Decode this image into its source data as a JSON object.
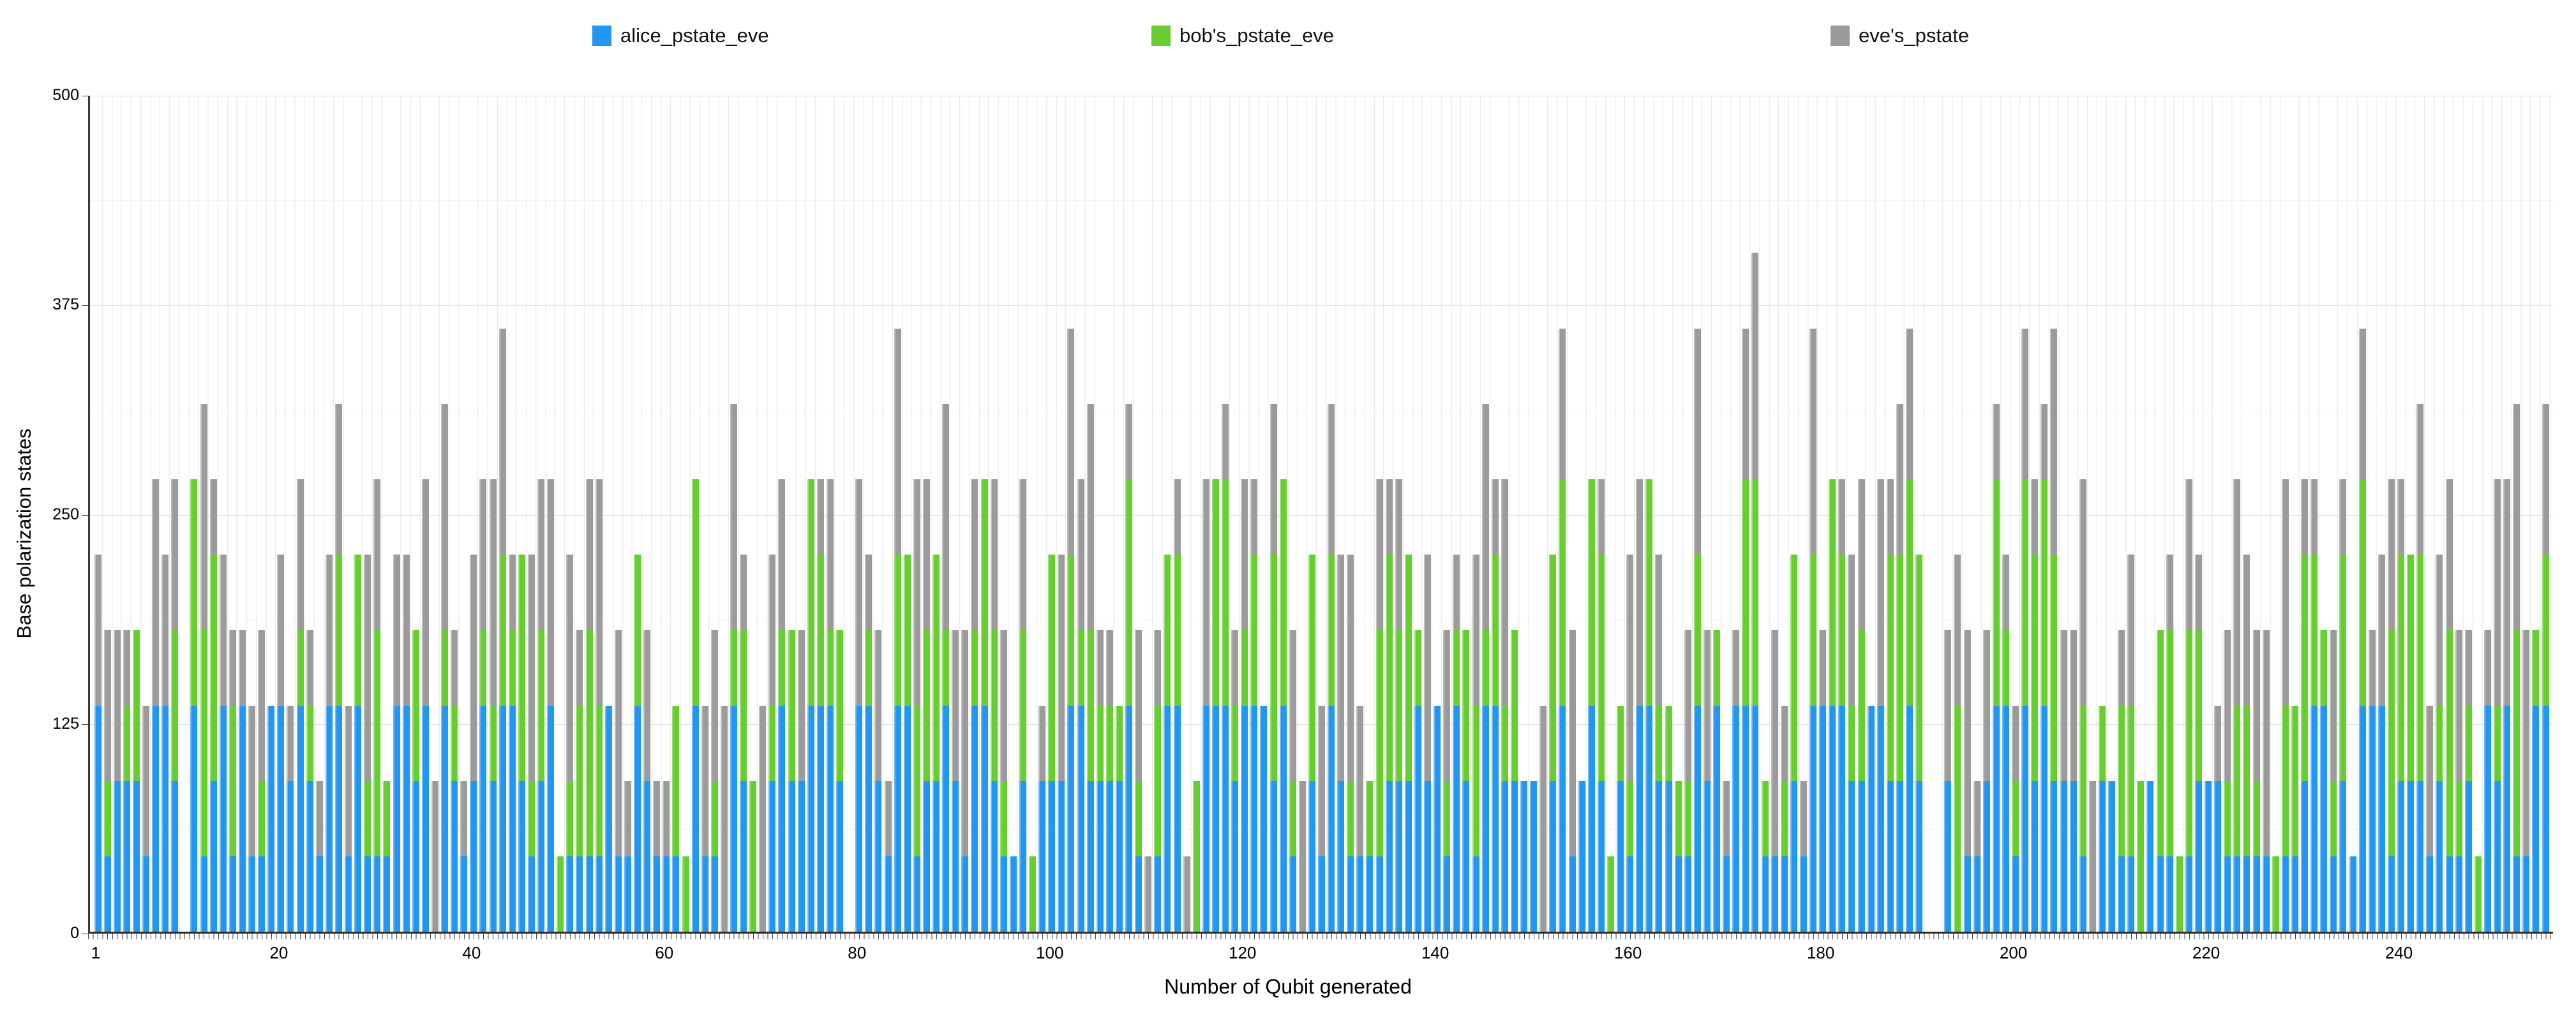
{
  "legend": [
    {
      "label": "alice_pstate_eve",
      "color": "#2196F3"
    },
    {
      "label": "bob's_pstate_eve",
      "color": "#66CE2E"
    },
    {
      "label": "eve's_pstate",
      "color": "#9B9B9B"
    }
  ],
  "axes": {
    "x_title": "Number of Qubit generated",
    "y_title": "Base polarization states"
  },
  "chart_data": {
    "type": "bar",
    "stacked": true,
    "title": "",
    "xlabel": "Number of Qubit generated",
    "ylabel": "Base polarization states",
    "x_start": 1,
    "x_count": 255,
    "xticks": [
      1,
      20,
      40,
      60,
      80,
      100,
      120,
      140,
      160,
      180,
      200,
      220,
      240
    ],
    "yticks": [
      0,
      125,
      250,
      375,
      500
    ],
    "y_minor_step": 62.5,
    "ylim": [
      0,
      500
    ],
    "grid": true,
    "legend_position": "top",
    "series": [
      {
        "name": "alice_pstate_eve",
        "color": "#2196F3",
        "values": [
          135,
          45,
          90,
          90,
          90,
          45,
          135,
          135,
          90,
          0,
          135,
          45,
          90,
          135,
          45,
          135,
          45,
          45,
          135,
          135,
          90,
          135,
          90,
          45,
          135,
          135,
          45,
          135,
          45,
          45,
          45,
          135,
          135,
          90,
          135,
          0,
          135,
          90,
          45,
          90,
          135,
          90,
          135,
          135,
          90,
          45,
          90,
          135,
          0,
          45,
          45,
          45,
          45,
          135,
          45,
          45,
          135,
          90,
          45,
          45,
          45,
          0,
          135,
          45,
          45,
          0,
          135,
          90,
          0,
          0,
          90,
          135,
          90,
          90,
          135,
          135,
          135,
          90,
          0,
          135,
          135,
          90,
          45,
          135,
          135,
          45,
          90,
          90,
          135,
          90,
          45,
          135,
          135,
          90,
          45,
          45,
          90,
          0,
          90,
          90,
          90,
          135,
          135,
          90,
          90,
          90,
          90,
          135,
          45,
          0,
          45,
          135,
          135,
          0,
          0,
          135,
          135,
          135,
          90,
          135,
          135,
          135,
          90,
          135,
          45,
          0,
          90,
          45,
          135,
          90,
          45,
          45,
          45,
          45,
          90,
          90,
          90,
          135,
          90,
          135,
          45,
          135,
          90,
          45,
          135,
          135,
          90,
          90,
          90,
          90,
          0,
          90,
          135,
          45,
          90,
          135,
          90,
          0,
          90,
          45,
          135,
          135,
          90,
          90,
          45,
          45,
          135,
          90,
          135,
          45,
          135,
          135,
          135,
          45,
          45,
          45,
          90,
          45,
          135,
          135,
          135,
          135,
          90,
          90,
          135,
          135,
          90,
          90,
          135,
          90,
          0,
          0,
          90,
          0,
          45,
          45,
          90,
          135,
          135,
          45,
          135,
          90,
          135,
          90,
          90,
          90,
          45,
          0,
          90,
          90,
          45,
          45,
          0,
          90,
          45,
          45,
          0,
          45,
          90,
          90,
          90,
          45,
          45,
          45,
          45,
          45,
          0,
          45,
          45,
          90,
          135,
          135,
          45,
          90,
          45,
          135,
          135,
          135,
          45,
          90,
          90,
          90,
          45,
          90,
          45,
          45,
          90,
          0,
          135,
          90,
          135,
          45,
          45,
          135,
          135
        ]
      },
      {
        "name": "bob's_pstate_eve",
        "color": "#66CE2E",
        "values": [
          0,
          45,
          0,
          45,
          90,
          0,
          0,
          0,
          90,
          0,
          135,
          135,
          135,
          0,
          90,
          0,
          0,
          45,
          0,
          0,
          0,
          45,
          45,
          0,
          0,
          90,
          0,
          90,
          45,
          135,
          45,
          0,
          0,
          90,
          0,
          0,
          45,
          45,
          0,
          0,
          45,
          45,
          90,
          45,
          135,
          45,
          90,
          0,
          45,
          45,
          90,
          135,
          90,
          0,
          0,
          0,
          90,
          0,
          0,
          0,
          90,
          45,
          135,
          0,
          45,
          0,
          45,
          90,
          90,
          0,
          45,
          45,
          90,
          0,
          135,
          90,
          45,
          90,
          0,
          0,
          45,
          0,
          0,
          90,
          90,
          90,
          90,
          135,
          45,
          0,
          0,
          45,
          135,
          90,
          45,
          0,
          90,
          45,
          0,
          135,
          0,
          90,
          45,
          90,
          45,
          45,
          45,
          135,
          45,
          0,
          90,
          90,
          90,
          0,
          90,
          0,
          135,
          135,
          45,
          45,
          90,
          0,
          135,
          135,
          45,
          0,
          135,
          0,
          90,
          0,
          45,
          0,
          45,
          135,
          135,
          90,
          135,
          45,
          0,
          0,
          45,
          45,
          90,
          90,
          45,
          90,
          45,
          90,
          0,
          0,
          0,
          135,
          135,
          0,
          0,
          135,
          135,
          45,
          45,
          45,
          0,
          135,
          45,
          45,
          45,
          45,
          90,
          0,
          45,
          0,
          0,
          135,
          135,
          45,
          0,
          45,
          135,
          0,
          90,
          0,
          135,
          90,
          45,
          90,
          0,
          0,
          135,
          135,
          135,
          135,
          0,
          0,
          0,
          135,
          0,
          0,
          0,
          135,
          45,
          45,
          135,
          135,
          135,
          135,
          0,
          0,
          90,
          0,
          45,
          0,
          90,
          90,
          90,
          0,
          135,
          135,
          45,
          135,
          90,
          0,
          0,
          45,
          90,
          90,
          45,
          0,
          45,
          90,
          90,
          135,
          90,
          45,
          45,
          135,
          0,
          135,
          0,
          0,
          135,
          135,
          135,
          135,
          0,
          45,
          135,
          45,
          45,
          45,
          0,
          45,
          0,
          135,
          0,
          45,
          90
        ]
      },
      {
        "name": "eve's_pstate",
        "color": "#9B9B9B",
        "values": [
          90,
          90,
          90,
          45,
          0,
          90,
          135,
          90,
          90,
          0,
          0,
          135,
          45,
          90,
          45,
          45,
          90,
          90,
          0,
          90,
          45,
          90,
          45,
          45,
          90,
          90,
          90,
          0,
          135,
          90,
          0,
          90,
          90,
          0,
          135,
          90,
          135,
          45,
          45,
          135,
          90,
          135,
          135,
          45,
          0,
          135,
          90,
          135,
          0,
          135,
          45,
          90,
          135,
          0,
          135,
          45,
          0,
          90,
          45,
          45,
          0,
          0,
          0,
          90,
          90,
          135,
          135,
          45,
          0,
          135,
          90,
          90,
          0,
          90,
          0,
          45,
          90,
          0,
          0,
          135,
          45,
          90,
          45,
          135,
          0,
          135,
          90,
          0,
          135,
          90,
          135,
          90,
          0,
          90,
          90,
          0,
          90,
          0,
          45,
          0,
          135,
          135,
          90,
          135,
          45,
          45,
          0,
          45,
          90,
          45,
          45,
          0,
          45,
          45,
          0,
          135,
          0,
          45,
          45,
          90,
          45,
          0,
          90,
          0,
          90,
          90,
          0,
          90,
          90,
          135,
          135,
          90,
          0,
          90,
          45,
          90,
          0,
          0,
          135,
          0,
          90,
          45,
          0,
          90,
          135,
          45,
          135,
          0,
          0,
          0,
          135,
          0,
          90,
          135,
          0,
          0,
          45,
          0,
          0,
          135,
          135,
          0,
          90,
          0,
          0,
          90,
          135,
          90,
          0,
          45,
          45,
          90,
          135,
          0,
          135,
          45,
          0,
          45,
          135,
          45,
          0,
          45,
          90,
          90,
          0,
          135,
          45,
          90,
          90,
          0,
          0,
          0,
          90,
          90,
          135,
          45,
          90,
          45,
          45,
          45,
          90,
          45,
          45,
          135,
          90,
          90,
          135,
          90,
          0,
          0,
          45,
          90,
          0,
          0,
          0,
          45,
          0,
          90,
          45,
          0,
          45,
          90,
          135,
          90,
          90,
          135,
          0,
          135,
          0,
          45,
          45,
          0,
          90,
          45,
          0,
          90,
          45,
          90,
          90,
          45,
          0,
          90,
          90,
          90,
          90,
          90,
          45,
          0,
          45,
          135,
          135,
          135,
          135,
          0,
          90
        ]
      }
    ]
  }
}
